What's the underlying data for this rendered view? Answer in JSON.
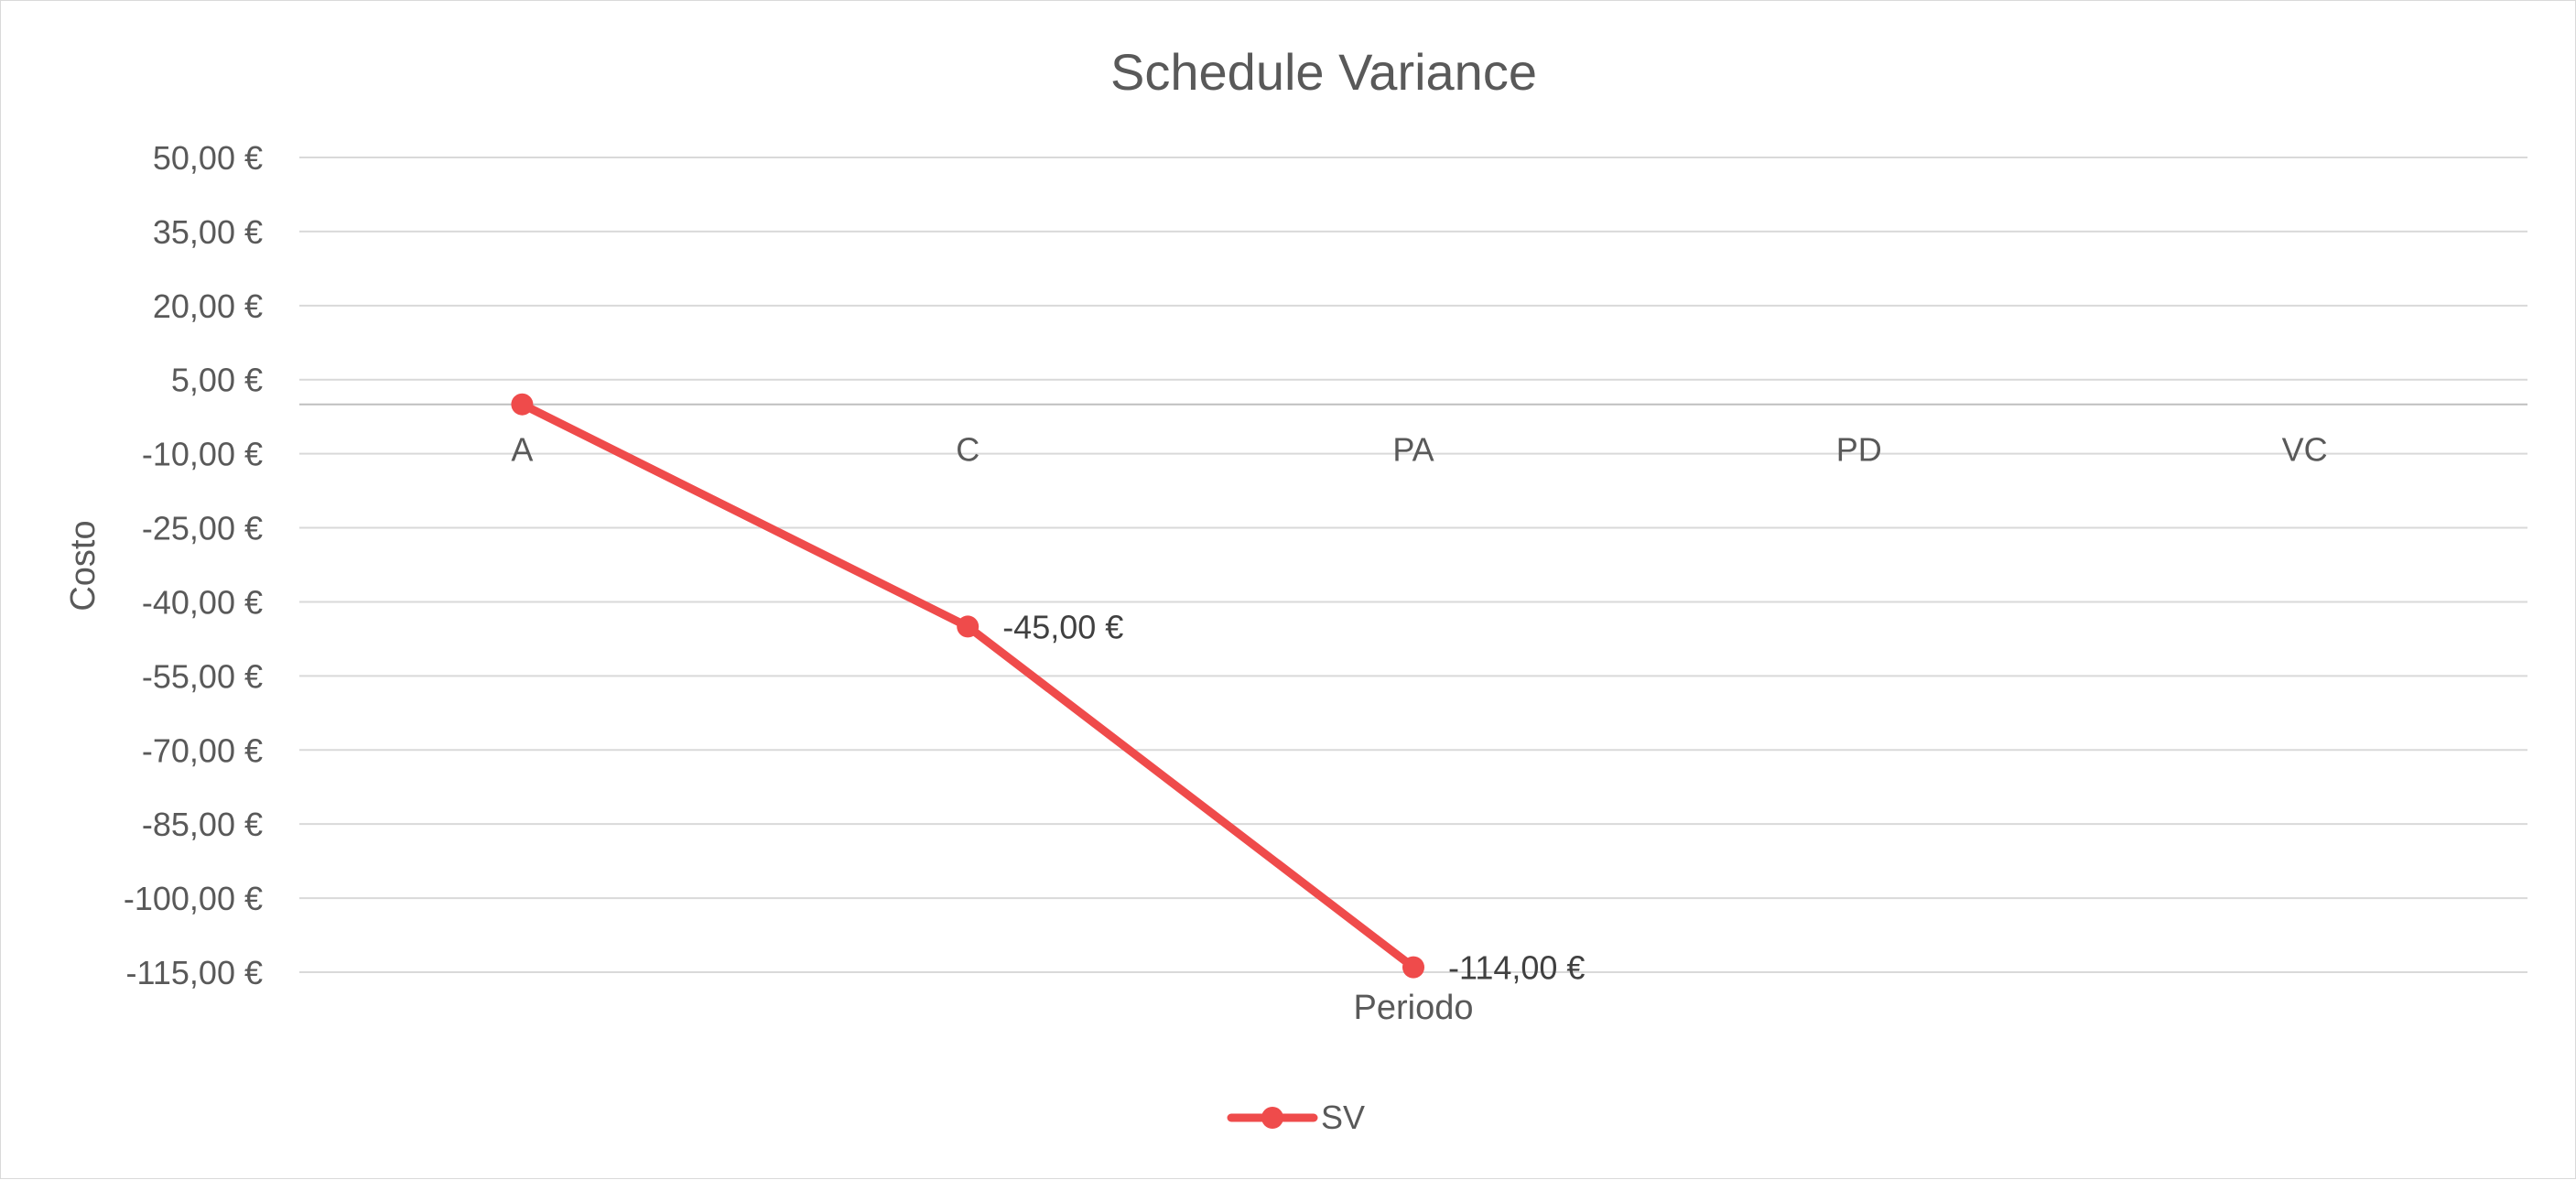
{
  "chart_data": {
    "type": "line",
    "title": "Schedule Variance",
    "xlabel": "Periodo",
    "ylabel": "Costo",
    "categories": [
      "A",
      "C",
      "PA",
      "PD",
      "VC"
    ],
    "series": [
      {
        "name": "SV",
        "values": [
          0,
          -45,
          -114,
          null,
          null
        ],
        "data_labels": [
          null,
          "-45,00 €",
          "-114,00 €",
          null,
          null
        ],
        "color": "#ef4b4b"
      }
    ],
    "y_ticks": [
      "50,00 €",
      "35,00 €",
      "20,00 €",
      "5,00 €",
      "-10,00 €",
      "-25,00 €",
      "-40,00 €",
      "-55,00 €",
      "-70,00 €",
      "-85,00 €",
      "-100,00 €",
      "-115,00 €"
    ],
    "ylim": [
      -115,
      50
    ],
    "grid": true,
    "legend_position": "bottom",
    "colors": {
      "gridline": "#d9d9d9",
      "text": "#595959"
    }
  }
}
